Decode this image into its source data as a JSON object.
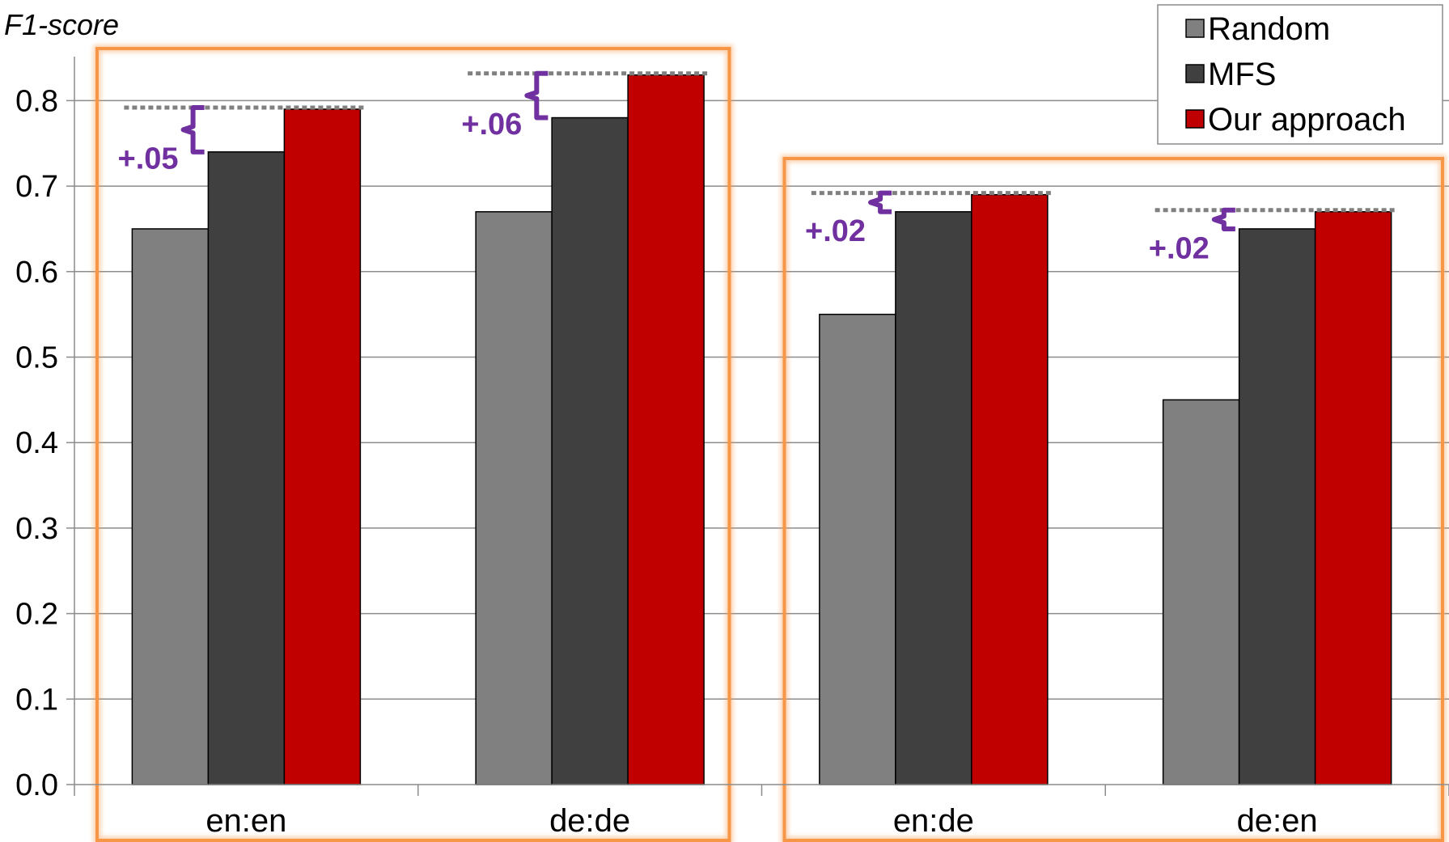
{
  "chart_data": {
    "type": "bar",
    "ylabel": "F1-score",
    "categories": [
      "en:en",
      "de:de",
      "en:de",
      "de:en"
    ],
    "ylim": [
      0,
      0.85
    ],
    "yticks": [
      "0.0",
      "0.1",
      "0.2",
      "0.3",
      "0.4",
      "0.5",
      "0.6",
      "0.7",
      "0.8"
    ],
    "grid": true,
    "legend_position": "top-right",
    "series": [
      {
        "name": "Random",
        "color": "#808080",
        "values": [
          0.65,
          0.67,
          0.55,
          0.45
        ]
      },
      {
        "name": "MFS",
        "color": "#404040",
        "values": [
          0.74,
          0.78,
          0.67,
          0.65
        ]
      },
      {
        "name": "Our approach",
        "color": "#c00000",
        "values": [
          0.79,
          0.83,
          0.69,
          0.67
        ]
      }
    ],
    "annotations": [
      "+.05",
      "+.06",
      "+.02",
      "+.02"
    ],
    "annotation_color": "#7030a0",
    "highlight_color": "#f79646",
    "highlight_groups": [
      [
        0,
        1
      ],
      [
        2,
        3
      ]
    ]
  }
}
